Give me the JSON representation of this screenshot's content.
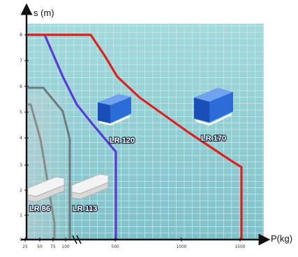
{
  "colors": {
    "grid_bg": "#93cdd3",
    "grid_line": "#c9ecef",
    "axis": "#111111",
    "lr86_line": "#8a8a8a",
    "lr113_line": "#6f7a7a",
    "lr120_line": "#5a3ad6",
    "lr170_line": "#e0201a",
    "box_blue": "#1f5fd0",
    "box_white": "#eeeeee"
  },
  "icons": {
    "lr120": "blue-stacker-box-icon",
    "lr170": "blue-stacker-box-icon",
    "lr86": "white-stacker-profile-icon",
    "lr113": "white-stacker-profile-icon"
  },
  "chart_data": {
    "type": "area",
    "title": "",
    "xlabel": "P(kg)",
    "ylabel": "s (m)",
    "xlim": [
      0,
      1100
    ],
    "ylim": [
      0,
      8.6
    ],
    "x_ticks": [
      25,
      50,
      75,
      100,
      500,
      1000,
      1500
    ],
    "x_tick_labels": [
      "25",
      "50",
      "75",
      "100",
      "500",
      "1000",
      "1500"
    ],
    "y_ticks": [
      0,
      1,
      2,
      3,
      4,
      5,
      6,
      7,
      8
    ],
    "y_tick_labels": [
      "0",
      "1",
      "2",
      "3",
      "4",
      "5",
      "6",
      "7",
      "8"
    ],
    "grid": true,
    "series": [
      {
        "name": "LR 86",
        "x": [
          0,
          3,
          12,
          12
        ],
        "y": [
          5.2,
          5.2,
          2.2,
          0
        ]
      },
      {
        "name": "LR 113",
        "x": [
          0,
          19,
          19
        ],
        "y": [
          6,
          6,
          0
        ]
      },
      {
        "name": "LR 120",
        "x": [
          0,
          28,
          65,
          168,
          168
        ],
        "y": [
          8,
          8,
          5.8,
          3.5,
          0
        ]
      },
      {
        "name": "LR 170",
        "x": [
          0,
          100,
          240,
          440,
          640,
          825,
          840,
          840
        ],
        "y": [
          8,
          8,
          6.2,
          5.2,
          4.0,
          2.8,
          2.7,
          0
        ]
      }
    ]
  }
}
